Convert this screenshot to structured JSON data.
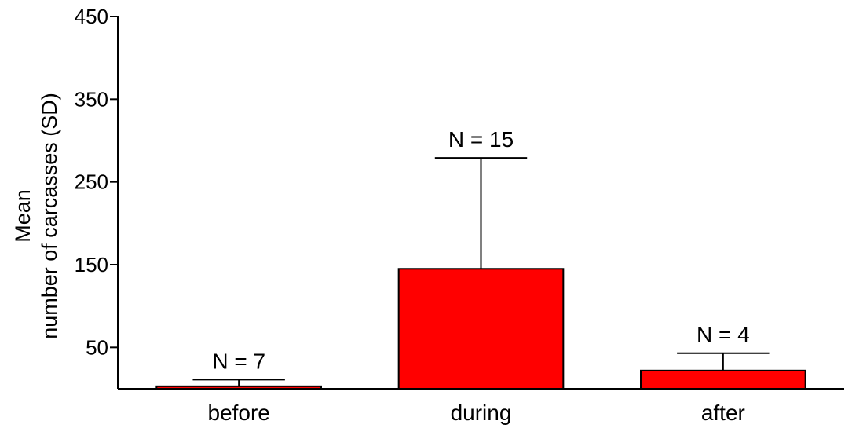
{
  "chart_data": {
    "type": "bar",
    "categories": [
      "before",
      "during",
      "after"
    ],
    "values": [
      3,
      145,
      22
    ],
    "error_sd": [
      8,
      134,
      21
    ],
    "n_labels": [
      "N = 7",
      "N = 15",
      "N = 4"
    ],
    "ylabel_line1": "Mean",
    "ylabel_line2": "number of carcasses (SD)",
    "yticks": [
      50,
      150,
      250,
      350,
      450
    ],
    "ylim": [
      0,
      450
    ],
    "bar_color": "#ff0000",
    "grid": false
  }
}
